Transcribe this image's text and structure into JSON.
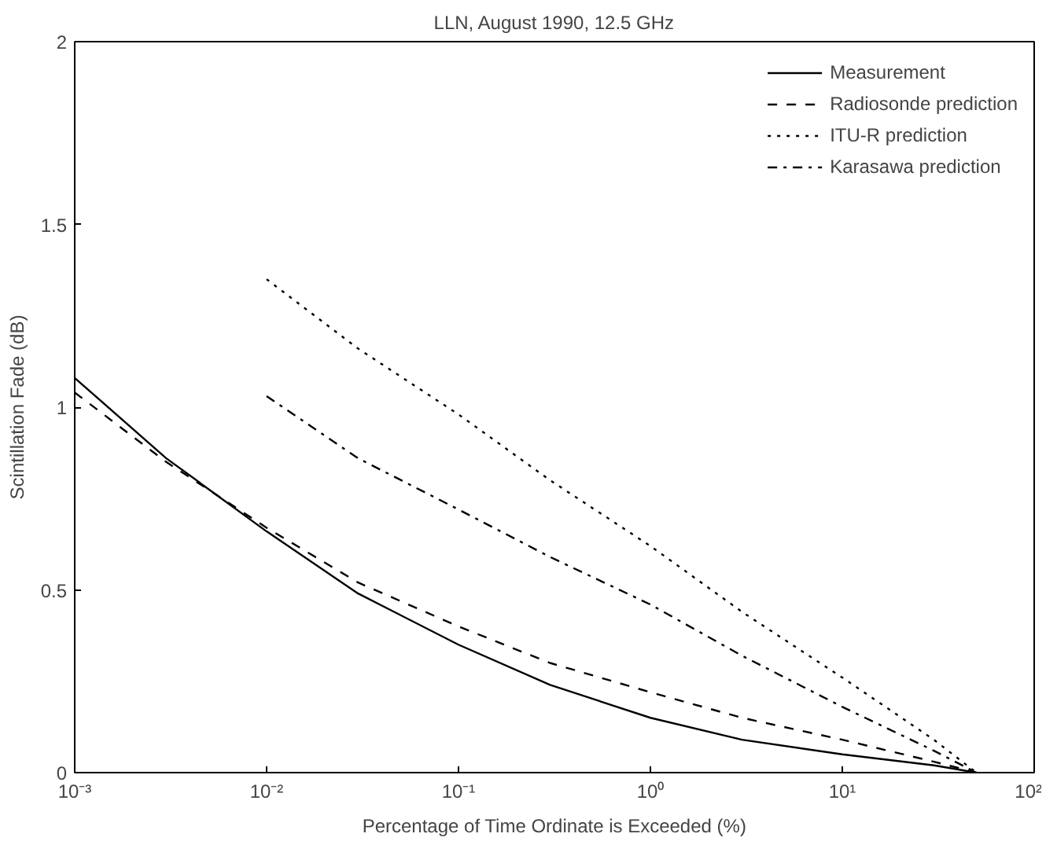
{
  "chart_data": {
    "type": "line",
    "title": "LLN, August 1990, 12.5 GHz",
    "xlabel": "Percentage of Time Ordinate is Exceeded (%)",
    "ylabel": "Scintillation Fade (dB)",
    "log": "x",
    "xlim": [
      0.001,
      100
    ],
    "ylim": [
      0,
      2
    ],
    "xticks": [
      {
        "value": 0.001,
        "label": "10⁻³"
      },
      {
        "value": 0.01,
        "label": "10⁻²"
      },
      {
        "value": 0.1,
        "label": "10⁻¹"
      },
      {
        "value": 1,
        "label": "10⁰"
      },
      {
        "value": 10,
        "label": "10¹"
      },
      {
        "value": 100,
        "label": "10²"
      }
    ],
    "yticks": [
      0,
      0.5,
      1,
      1.5,
      2
    ],
    "grid": false,
    "legend": "top right",
    "series": [
      {
        "name": "Measurement",
        "color": "#000000",
        "line_style": "solid",
        "x": [
          0.001,
          0.003,
          0.01,
          0.03,
          0.1,
          0.3,
          1,
          3,
          10,
          30,
          50
        ],
        "values": [
          1.08,
          0.86,
          0.66,
          0.49,
          0.35,
          0.24,
          0.15,
          0.09,
          0.05,
          0.02,
          0.0
        ]
      },
      {
        "name": "Radiosonde prediction",
        "color": "#000000",
        "line_style": "dashed",
        "x": [
          0.001,
          0.003,
          0.01,
          0.03,
          0.1,
          0.3,
          1,
          3,
          10,
          30,
          50
        ],
        "values": [
          1.04,
          0.85,
          0.67,
          0.52,
          0.4,
          0.3,
          0.22,
          0.15,
          0.09,
          0.03,
          0.0
        ]
      },
      {
        "name": "ITU-R prediction",
        "color": "#000000",
        "line_style": "dotted",
        "x": [
          0.01,
          0.03,
          0.1,
          0.3,
          1,
          3,
          10,
          30,
          50
        ],
        "values": [
          1.35,
          1.16,
          0.98,
          0.8,
          0.62,
          0.44,
          0.26,
          0.09,
          0.0
        ]
      },
      {
        "name": "Karasawa prediction",
        "color": "#000000",
        "line_style": "dashdot",
        "x": [
          0.01,
          0.03,
          0.1,
          0.3,
          1,
          3,
          10,
          30,
          50
        ],
        "values": [
          1.03,
          0.86,
          0.72,
          0.59,
          0.46,
          0.32,
          0.18,
          0.06,
          0.0
        ]
      }
    ]
  }
}
